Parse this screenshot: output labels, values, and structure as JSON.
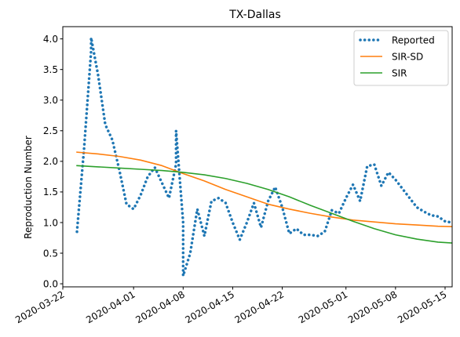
{
  "chart_data": {
    "type": "line",
    "title": "TX-Dallas",
    "xlabel": "",
    "ylabel": "Reproduction Number",
    "xlim": [
      "2020-03-22",
      "2020-05-16"
    ],
    "ylim": [
      -0.05,
      4.2
    ],
    "x_ticks": [
      "2020-03-22",
      "2020-04-01",
      "2020-04-08",
      "2020-04-15",
      "2020-04-22",
      "2020-05-01",
      "2020-05-08",
      "2020-05-15"
    ],
    "y_ticks": [
      "0.0",
      "0.5",
      "1.0",
      "1.5",
      "2.0",
      "2.5",
      "3.0",
      "3.5",
      "4.0"
    ],
    "legend_position": "upper-right",
    "series": [
      {
        "name": "Reported",
        "color": "#1f77b4",
        "style": "dotted",
        "points": [
          [
            "2020-03-24",
            0.85
          ],
          [
            "2020-03-25",
            2.2
          ],
          [
            "2020-03-26",
            3.8
          ],
          [
            "2020-03-26",
            4.02
          ],
          [
            "2020-03-27",
            3.4
          ],
          [
            "2020-03-28",
            2.6
          ],
          [
            "2020-03-29",
            2.35
          ],
          [
            "2020-03-30",
            1.85
          ],
          [
            "2020-03-31",
            1.3
          ],
          [
            "2020-04-01",
            1.22
          ],
          [
            "2020-04-02",
            1.45
          ],
          [
            "2020-04-03",
            1.75
          ],
          [
            "2020-04-04",
            1.9
          ],
          [
            "2020-04-05",
            1.65
          ],
          [
            "2020-04-06",
            1.4
          ],
          [
            "2020-04-07",
            1.95
          ],
          [
            "2020-04-07",
            2.5
          ],
          [
            "2020-04-08",
            1.0
          ],
          [
            "2020-04-08",
            0.13
          ],
          [
            "2020-04-09",
            0.5
          ],
          [
            "2020-04-10",
            1.22
          ],
          [
            "2020-04-11",
            0.78
          ],
          [
            "2020-04-12",
            1.35
          ],
          [
            "2020-04-13",
            1.4
          ],
          [
            "2020-04-14",
            1.32
          ],
          [
            "2020-04-15",
            1.0
          ],
          [
            "2020-04-16",
            0.72
          ],
          [
            "2020-04-17",
            1.0
          ],
          [
            "2020-04-18",
            1.32
          ],
          [
            "2020-04-19",
            0.92
          ],
          [
            "2020-04-20",
            1.35
          ],
          [
            "2020-04-21",
            1.58
          ],
          [
            "2020-04-22",
            1.25
          ],
          [
            "2020-04-23",
            0.82
          ],
          [
            "2020-04-24",
            0.9
          ],
          [
            "2020-04-25",
            0.8
          ],
          [
            "2020-04-26",
            0.8
          ],
          [
            "2020-04-27",
            0.78
          ],
          [
            "2020-04-28",
            0.85
          ],
          [
            "2020-04-29",
            1.2
          ],
          [
            "2020-04-30",
            1.15
          ],
          [
            "2020-05-01",
            1.4
          ],
          [
            "2020-05-02",
            1.62
          ],
          [
            "2020-05-03",
            1.35
          ],
          [
            "2020-05-04",
            1.92
          ],
          [
            "2020-05-05",
            1.95
          ],
          [
            "2020-05-06",
            1.6
          ],
          [
            "2020-05-07",
            1.82
          ],
          [
            "2020-05-08",
            1.7
          ],
          [
            "2020-05-09",
            1.55
          ],
          [
            "2020-05-10",
            1.4
          ],
          [
            "2020-05-11",
            1.25
          ],
          [
            "2020-05-12",
            1.18
          ],
          [
            "2020-05-13",
            1.12
          ],
          [
            "2020-05-14",
            1.1
          ],
          [
            "2020-05-15",
            1.02
          ],
          [
            "2020-05-16",
            1.0
          ],
          [
            "2020-05-17",
            0.92
          ],
          [
            "2020-05-18",
            0.85
          ]
        ]
      },
      {
        "name": "SIR-SD",
        "color": "#ff7f0e",
        "style": "solid",
        "points": [
          [
            "2020-03-24",
            2.15
          ],
          [
            "2020-03-27",
            2.12
          ],
          [
            "2020-03-30",
            2.08
          ],
          [
            "2020-04-02",
            2.02
          ],
          [
            "2020-04-05",
            1.93
          ],
          [
            "2020-04-08",
            1.8
          ],
          [
            "2020-04-11",
            1.68
          ],
          [
            "2020-04-14",
            1.54
          ],
          [
            "2020-04-17",
            1.42
          ],
          [
            "2020-04-20",
            1.3
          ],
          [
            "2020-04-23",
            1.22
          ],
          [
            "2020-04-26",
            1.15
          ],
          [
            "2020-04-29",
            1.09
          ],
          [
            "2020-05-02",
            1.04
          ],
          [
            "2020-05-05",
            1.01
          ],
          [
            "2020-05-08",
            0.98
          ],
          [
            "2020-05-11",
            0.96
          ],
          [
            "2020-05-14",
            0.94
          ],
          [
            "2020-05-17",
            0.93
          ],
          [
            "2020-05-18",
            0.92
          ]
        ]
      },
      {
        "name": "SIR",
        "color": "#2ca02c",
        "style": "solid",
        "points": [
          [
            "2020-03-24",
            1.93
          ],
          [
            "2020-03-27",
            1.91
          ],
          [
            "2020-03-30",
            1.89
          ],
          [
            "2020-04-02",
            1.87
          ],
          [
            "2020-04-05",
            1.85
          ],
          [
            "2020-04-08",
            1.82
          ],
          [
            "2020-04-11",
            1.78
          ],
          [
            "2020-04-14",
            1.72
          ],
          [
            "2020-04-17",
            1.64
          ],
          [
            "2020-04-20",
            1.54
          ],
          [
            "2020-04-23",
            1.42
          ],
          [
            "2020-04-26",
            1.28
          ],
          [
            "2020-04-29",
            1.15
          ],
          [
            "2020-05-02",
            1.02
          ],
          [
            "2020-05-05",
            0.9
          ],
          [
            "2020-05-08",
            0.8
          ],
          [
            "2020-05-11",
            0.73
          ],
          [
            "2020-05-14",
            0.68
          ],
          [
            "2020-05-17",
            0.66
          ],
          [
            "2020-05-18",
            0.65
          ]
        ]
      }
    ]
  }
}
